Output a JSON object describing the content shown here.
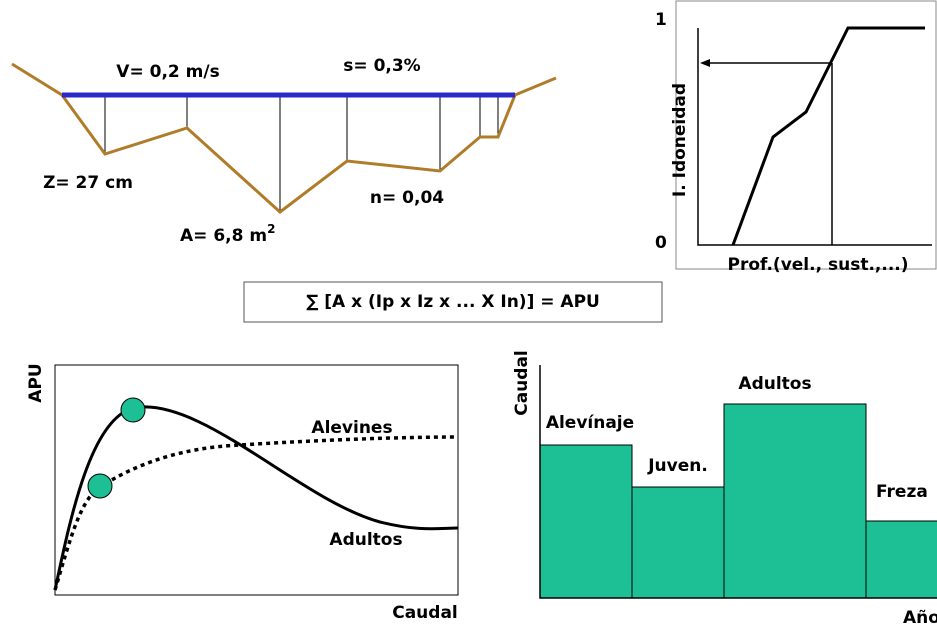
{
  "cross_section": {
    "velocity": "V= 0,2 m/s",
    "slope": "s= 0,3%",
    "depth": "Z= 27 cm",
    "area": "A= 6,8 m",
    "area_exponent": "2",
    "roughness": "n= 0,04"
  },
  "suitability_curve": {
    "y_max": "1",
    "y_min": "0",
    "y_label": "I. Idoneidad",
    "x_label": "Prof.(vel., sust.,...)"
  },
  "formula": "∑ [A x (Ip x Iz x ... X In)] = APU",
  "apu_curve": {
    "y_label": "APU",
    "x_label": "Caudal",
    "series": [
      "Alevines",
      "Adultos"
    ]
  },
  "flow_regime": {
    "y_label": "Caudal",
    "x_label": "Año",
    "stages": [
      "Alevínaje",
      "Juven.",
      "Adultos",
      "Freza"
    ]
  }
}
